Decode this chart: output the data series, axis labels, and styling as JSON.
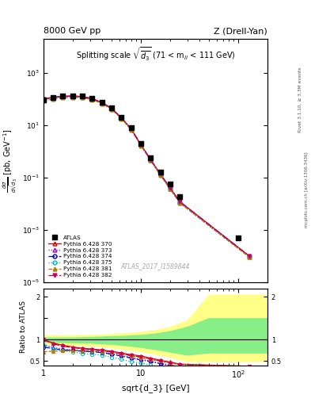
{
  "title_left": "8000 GeV pp",
  "title_right": "Z (Drell-Yan)",
  "plot_title": "Splitting scale $\\sqrt{\\overline{d_3}}$ (71 < m$_{ll}$ < 111 GeV)",
  "watermark": "ATLAS_2017_I1589844",
  "right_label1": "Rivet 3.1.10, ≥ 3.3M events",
  "right_label2": "mcplots.cern.ch [arXiv:1306.3436]",
  "xlabel": "sqrt{d_3} [GeV]",
  "ylabel_main": "dσ\n/dsqrt(d_3) [pb,GeV⁻¹]",
  "ylabel_ratio": "Ratio to ATLAS",
  "xlim": [
    1.0,
    200.0
  ],
  "ylim_main": [
    1e-05,
    20000.0
  ],
  "ylim_ratio": [
    0.4,
    2.2
  ],
  "data_x": [
    1.0,
    1.26,
    1.58,
    2.0,
    2.51,
    3.16,
    3.98,
    5.01,
    6.31,
    7.94,
    10.0,
    12.59,
    15.85,
    19.95,
    25.12,
    100.0
  ],
  "data_y": [
    90.0,
    110.0,
    125.0,
    130.0,
    125.0,
    105.0,
    75.0,
    45.0,
    20.0,
    8.0,
    2.0,
    0.55,
    0.16,
    0.055,
    0.018,
    0.0005
  ],
  "series": [
    {
      "label": "Pythia 6.428 370",
      "color": "#dd0000",
      "linestyle": "-",
      "marker": "^",
      "filled": false,
      "x": [
        1.0,
        1.26,
        1.58,
        2.0,
        2.51,
        3.16,
        3.98,
        5.01,
        6.31,
        7.94,
        10.0,
        12.59,
        15.85,
        19.95,
        25.12,
        130.0
      ],
      "y": [
        100.0,
        115.0,
        125.0,
        128.0,
        122.0,
        102.0,
        72.0,
        43.0,
        19.0,
        7.2,
        1.8,
        0.48,
        0.135,
        0.04,
        0.012,
        0.0001
      ],
      "ratio": [
        1.0,
        0.92,
        0.87,
        0.83,
        0.8,
        0.78,
        0.76,
        0.73,
        0.69,
        0.65,
        0.62,
        0.57,
        0.52,
        0.48,
        0.43,
        0.38
      ]
    },
    {
      "label": "Pythia 6.428 373",
      "color": "#9900cc",
      "linestyle": ":",
      "marker": "^",
      "filled": false,
      "x": [
        1.0,
        1.26,
        1.58,
        2.0,
        2.51,
        3.16,
        3.98,
        5.01,
        6.31,
        7.94,
        10.0,
        12.59,
        15.85,
        19.95,
        25.12,
        130.0
      ],
      "y": [
        95.0,
        112.0,
        122.0,
        125.0,
        119.0,
        100.0,
        70.0,
        42.0,
        18.5,
        7.0,
        1.75,
        0.46,
        0.13,
        0.038,
        0.011,
        9.5e-05
      ],
      "ratio": [
        0.88,
        0.82,
        0.78,
        0.76,
        0.74,
        0.73,
        0.71,
        0.67,
        0.63,
        0.58,
        0.54,
        0.5,
        0.45,
        0.41,
        0.37,
        0.33
      ]
    },
    {
      "label": "Pythia 6.428 374",
      "color": "#0000cc",
      "linestyle": "-.",
      "marker": "o",
      "filled": false,
      "x": [
        1.0,
        1.26,
        1.58,
        2.0,
        2.51,
        3.16,
        3.98,
        5.01,
        6.31,
        7.94,
        10.0,
        12.59,
        15.85,
        19.95,
        25.12,
        130.0
      ],
      "y": [
        97.0,
        113.0,
        123.0,
        126.0,
        120.0,
        101.0,
        71.0,
        42.5,
        18.8,
        7.1,
        1.77,
        0.47,
        0.132,
        0.039,
        0.0115,
        9.8e-05
      ],
      "ratio": [
        0.83,
        0.79,
        0.76,
        0.75,
        0.73,
        0.72,
        0.7,
        0.66,
        0.62,
        0.57,
        0.53,
        0.49,
        0.44,
        0.4,
        0.36,
        0.32
      ]
    },
    {
      "label": "Pythia 6.428 375",
      "color": "#00bbbb",
      "linestyle": ":",
      "marker": "o",
      "filled": false,
      "x": [
        1.0,
        1.26,
        1.58,
        2.0,
        2.51,
        3.16,
        3.98,
        5.01,
        6.31,
        7.94,
        10.0,
        12.59,
        15.85,
        19.95,
        25.12,
        130.0
      ],
      "y": [
        93.0,
        109.0,
        119.0,
        122.0,
        116.0,
        97.0,
        68.0,
        40.5,
        17.8,
        6.7,
        1.67,
        0.44,
        0.123,
        0.036,
        0.0105,
        9e-05
      ],
      "ratio": [
        0.87,
        0.79,
        0.74,
        0.71,
        0.68,
        0.66,
        0.64,
        0.59,
        0.54,
        0.49,
        0.45,
        0.41,
        0.36,
        0.32,
        0.29,
        0.27
      ]
    },
    {
      "label": "Pythia 6.428 381",
      "color": "#bb7700",
      "linestyle": "--",
      "marker": "^",
      "filled": true,
      "x": [
        1.0,
        1.26,
        1.58,
        2.0,
        2.51,
        3.16,
        3.98,
        5.01,
        6.31,
        7.94,
        10.0,
        12.59,
        15.85,
        19.95,
        25.12,
        130.0
      ],
      "y": [
        82.0,
        100.0,
        110.0,
        115.0,
        110.0,
        93.0,
        66.0,
        40.0,
        17.5,
        6.6,
        1.65,
        0.44,
        0.123,
        0.036,
        0.0105,
        9e-05
      ],
      "ratio": [
        0.72,
        0.73,
        0.74,
        0.74,
        0.75,
        0.75,
        0.73,
        0.71,
        0.67,
        0.62,
        0.58,
        0.54,
        0.5,
        0.46,
        0.42,
        0.38
      ]
    },
    {
      "label": "Pythia 6.428 382",
      "color": "#cc0055",
      "linestyle": "-.",
      "marker": "v",
      "filled": true,
      "x": [
        1.0,
        1.26,
        1.58,
        2.0,
        2.51,
        3.16,
        3.98,
        5.01,
        6.31,
        7.94,
        10.0,
        12.59,
        15.85,
        19.95,
        25.12,
        130.0
      ],
      "y": [
        100.0,
        115.0,
        125.0,
        128.0,
        122.0,
        102.0,
        72.0,
        43.0,
        19.0,
        7.2,
        1.8,
        0.48,
        0.135,
        0.04,
        0.012,
        0.0001
      ],
      "ratio": [
        1.0,
        0.9,
        0.85,
        0.81,
        0.79,
        0.77,
        0.75,
        0.71,
        0.67,
        0.63,
        0.6,
        0.55,
        0.5,
        0.46,
        0.42,
        0.37
      ]
    }
  ],
  "yellow_band": {
    "x": [
      1.0,
      2.0,
      3.0,
      4.0,
      5.0,
      7.0,
      10.0,
      14.0,
      20.0,
      30.0,
      50.0,
      200.0
    ],
    "lo": [
      0.9,
      0.88,
      0.86,
      0.84,
      0.82,
      0.78,
      0.73,
      0.67,
      0.6,
      0.5,
      0.5,
      0.5
    ],
    "hi": [
      1.1,
      1.1,
      1.11,
      1.12,
      1.13,
      1.15,
      1.18,
      1.22,
      1.3,
      1.45,
      2.05,
      2.05
    ]
  },
  "green_band": {
    "x": [
      1.0,
      2.0,
      3.0,
      4.0,
      5.0,
      7.0,
      10.0,
      14.0,
      20.0,
      30.0,
      50.0,
      200.0
    ],
    "lo": [
      0.95,
      0.94,
      0.93,
      0.91,
      0.9,
      0.87,
      0.83,
      0.78,
      0.72,
      0.65,
      0.7,
      0.7
    ],
    "hi": [
      1.05,
      1.05,
      1.06,
      1.07,
      1.08,
      1.09,
      1.11,
      1.14,
      1.2,
      1.3,
      1.5,
      1.5
    ]
  }
}
